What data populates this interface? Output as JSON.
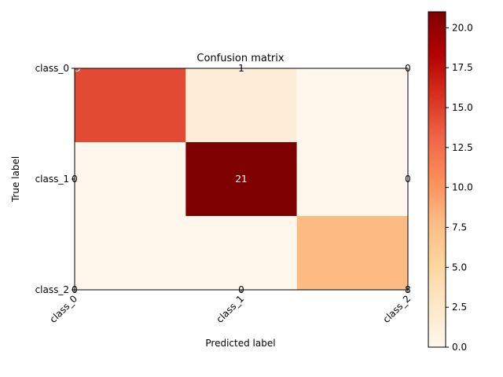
{
  "chart_data": {
    "type": "heatmap",
    "title": "Confusion matrix",
    "xlabel": "Predicted label",
    "ylabel": "True label",
    "x_categories": [
      "class_0",
      "class_1",
      "class_2"
    ],
    "y_categories": [
      "class_0",
      "class_1",
      "class_2"
    ],
    "values": [
      [
        15,
        1,
        0
      ],
      [
        0,
        21,
        0
      ],
      [
        0,
        0,
        8
      ]
    ],
    "colormap": "OrRd",
    "colorbar": {
      "range": [
        0,
        21
      ],
      "ticks": [
        "0.0",
        "2.5",
        "5.0",
        "7.5",
        "10.0",
        "12.5",
        "15.0",
        "17.5",
        "20.0"
      ]
    },
    "colors": {
      "cell_0_0": "#e34a33",
      "cell_0_1": "#feedd8",
      "cell_0_2": "#fff7ec",
      "cell_1_0": "#fff7ec",
      "cell_1_1": "#7f0000",
      "cell_1_2": "#fff7ec",
      "cell_2_0": "#fff7ec",
      "cell_2_1": "#fff7ec",
      "cell_2_2": "#fdbb84",
      "text_dark_bg": "#ffffff",
      "text_light_bg": "#000000"
    }
  }
}
